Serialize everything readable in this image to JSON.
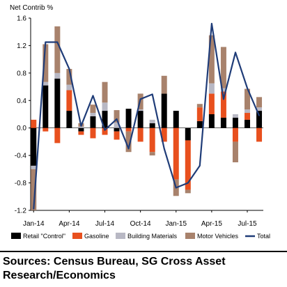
{
  "chart_data": {
    "type": "bar",
    "stacked": true,
    "ylabel": "Net Contrib %",
    "ylim": [
      -1.2,
      1.6
    ],
    "yticks": [
      1.6,
      1.2,
      0.8,
      0.4,
      0.0,
      -0.4,
      -0.8,
      -1.2
    ],
    "ytick_labels": [
      "1.6",
      "1.2",
      "0.8",
      "0.4",
      "0.0",
      "-0.4",
      "-0.8",
      "-1.2"
    ],
    "categories": [
      "Jan-14",
      "Feb-14",
      "Mar-14",
      "Apr-14",
      "May-14",
      "Jun-14",
      "Jul-14",
      "Aug-14",
      "Sep-14",
      "Oct-14",
      "Nov-14",
      "Dec-14",
      "Jan-15",
      "Feb-15",
      "Mar-15",
      "Apr-15",
      "May-15",
      "Jun-15",
      "Jul-15",
      "Aug-15"
    ],
    "x_tick_labels": [
      {
        "index": 0,
        "label": "Jan-14"
      },
      {
        "index": 3,
        "label": "Apr-14"
      },
      {
        "index": 6,
        "label": "Jul-14"
      },
      {
        "index": 9,
        "label": "Oct-14"
      },
      {
        "index": 12,
        "label": "Jan-15"
      },
      {
        "index": 15,
        "label": "Apr-15"
      },
      {
        "index": 18,
        "label": "Jul-15"
      }
    ],
    "grid": false,
    "legend_position": "bottom",
    "series": [
      {
        "name": "Retail \"Control\"",
        "kind": "bar",
        "color": "#000000",
        "values": [
          -0.55,
          0.62,
          0.72,
          0.25,
          -0.05,
          0.17,
          0.25,
          -0.05,
          0.28,
          0.25,
          0.07,
          0.5,
          0.25,
          -0.18,
          0.1,
          0.2,
          0.15,
          0.15,
          0.12,
          0.25
        ]
      },
      {
        "name": "Gasoline",
        "kind": "bar",
        "color": "#e8501e",
        "values": [
          0.12,
          -0.05,
          -0.22,
          0.3,
          -0.05,
          -0.15,
          -0.1,
          -0.12,
          -0.05,
          -0.2,
          -0.35,
          -0.2,
          -0.75,
          -0.72,
          0.2,
          0.3,
          0.38,
          -0.2,
          0.1,
          -0.2
        ]
      },
      {
        "name": "Building Materials",
        "kind": "bar",
        "color": "#b8b8c4",
        "values": [
          -0.05,
          0.05,
          0.08,
          0.08,
          0.02,
          0.05,
          0.12,
          0.08,
          0.0,
          0.02,
          0.05,
          0.0,
          0.0,
          0.0,
          0.0,
          0.15,
          0.05,
          0.05,
          0.05,
          0.05
        ]
      },
      {
        "name": "Motor Vehicles",
        "kind": "bar",
        "color": "#a8826c",
        "values": [
          -0.6,
          0.55,
          0.68,
          0.23,
          0.05,
          0.12,
          0.3,
          0.18,
          -0.3,
          0.23,
          -0.05,
          0.26,
          -0.24,
          -0.05,
          0.05,
          0.7,
          0.6,
          -0.3,
          0.3,
          0.15
        ]
      },
      {
        "name": "Total",
        "kind": "line",
        "color": "#1f3c78",
        "values": [
          -1.18,
          1.25,
          1.25,
          0.86,
          0.03,
          0.47,
          -0.03,
          0.13,
          -0.3,
          0.42,
          0.49,
          -0.3,
          -0.87,
          -0.8,
          -0.55,
          1.52,
          0.42,
          1.1,
          0.58,
          0.18
        ]
      }
    ]
  },
  "source": {
    "text": "Sources: Census Bureau, SG Cross Asset Research/Economics"
  }
}
